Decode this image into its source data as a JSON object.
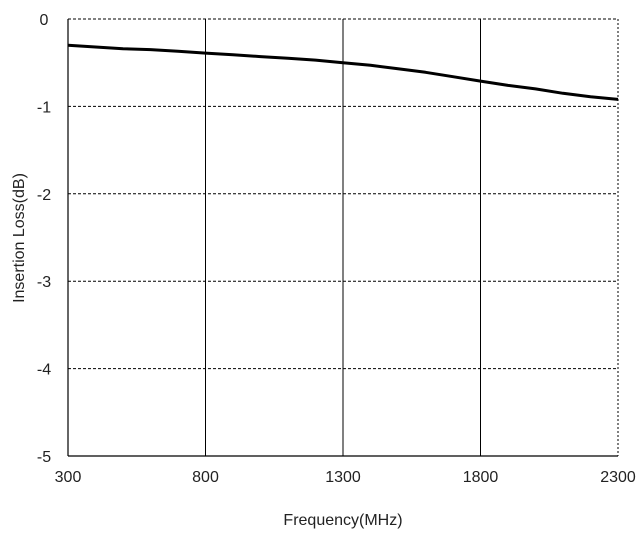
{
  "chart_data": {
    "type": "line",
    "title": "",
    "xlabel": "Frequency(MHz)",
    "ylabel": "Insertion Loss(dB)",
    "xlim": [
      300,
      2300
    ],
    "ylim": [
      -5,
      0
    ],
    "x_ticks": [
      300,
      800,
      1300,
      1800,
      2300
    ],
    "x_tick_labels": [
      "300",
      "800",
      "1300",
      "1800",
      "2300"
    ],
    "y_ticks": [
      0,
      -1,
      -2,
      -3,
      -4,
      -5
    ],
    "y_tick_labels": [
      "0",
      "-1",
      "-2",
      "-3",
      "-4",
      "-5"
    ],
    "grid": true,
    "series": [
      {
        "x": [
          300,
          400,
          500,
          600,
          700,
          800,
          900,
          1000,
          1100,
          1200,
          1300,
          1400,
          1500,
          1600,
          1700,
          1800,
          1900,
          2000,
          2100,
          2200,
          2300
        ],
        "y": [
          -0.3,
          -0.32,
          -0.34,
          -0.35,
          -0.37,
          -0.39,
          -0.41,
          -0.43,
          -0.45,
          -0.47,
          -0.5,
          -0.53,
          -0.57,
          -0.61,
          -0.66,
          -0.71,
          -0.76,
          -0.8,
          -0.85,
          -0.89,
          -0.92
        ],
        "color": "#000000"
      }
    ]
  }
}
